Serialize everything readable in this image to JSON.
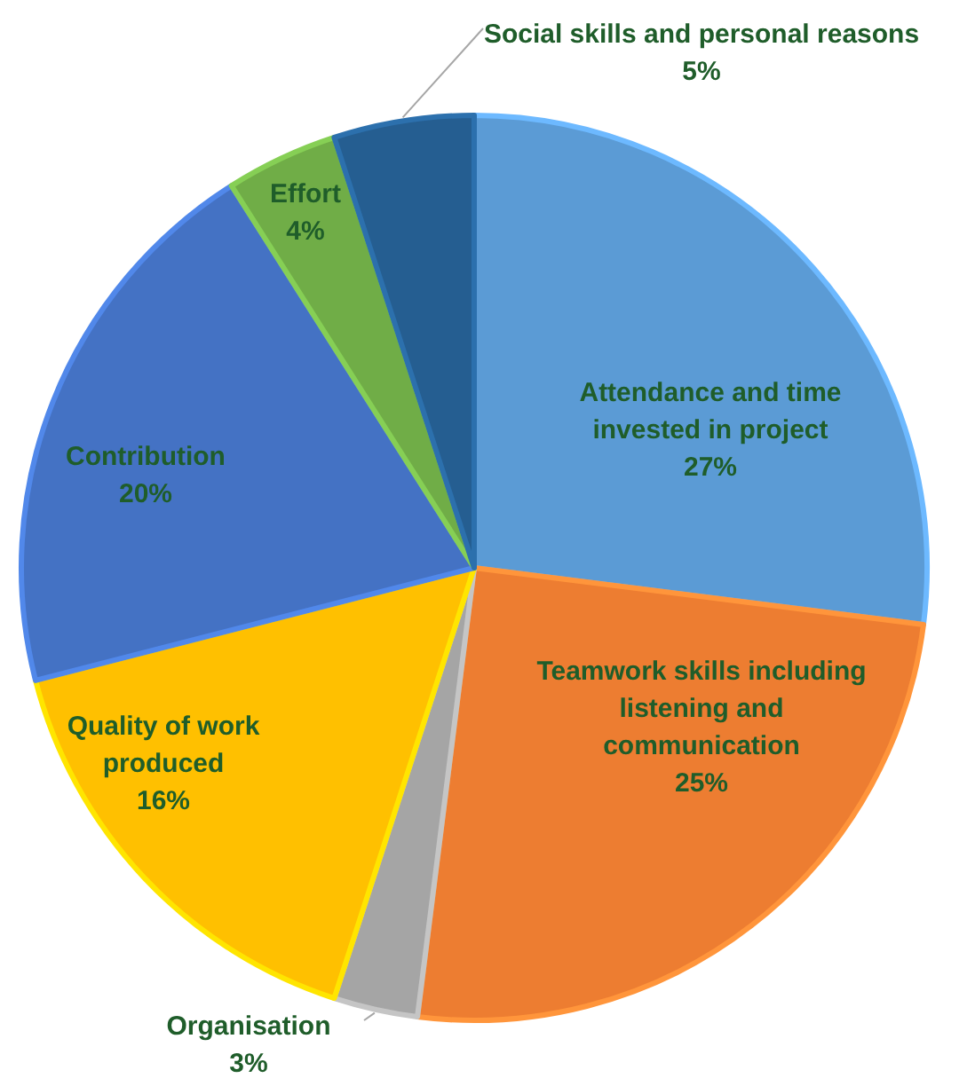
{
  "chart_data": {
    "type": "pie",
    "categories": [
      "Attendance and time invested in project",
      "Teamwork skills including listening and communication",
      "Organisation",
      "Quality of work produced",
      "Contribution",
      "Effort",
      "Social skills and personal reasons"
    ],
    "values": [
      27,
      25,
      3,
      16,
      20,
      4,
      5
    ],
    "colors": [
      "#5b9bd5",
      "#ed7d31",
      "#a5a5a5",
      "#ffc000",
      "#4472c4",
      "#70ad47",
      "#255e91"
    ],
    "value_labels": [
      "27%",
      "25%",
      "3%",
      "16%",
      "20%",
      "4%",
      "5%"
    ]
  }
}
